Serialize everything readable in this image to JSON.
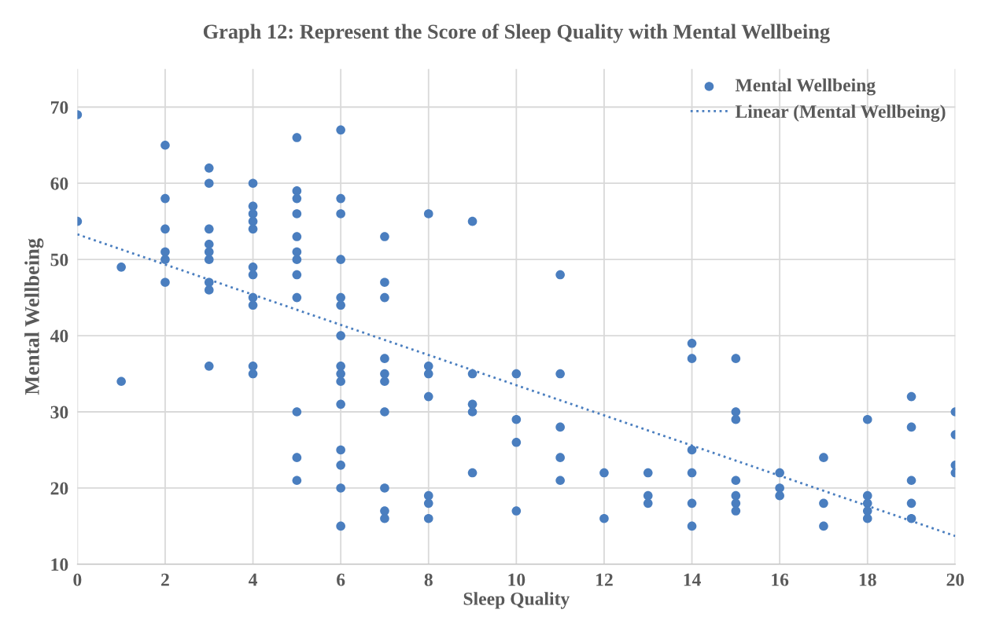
{
  "chart_data": {
    "type": "scatter",
    "title": "Graph 12: Represent the Score of Sleep Quality with Mental Wellbeing",
    "xlabel": "Sleep Quality",
    "ylabel": "Mental Wellbeing",
    "xlim": [
      0,
      20
    ],
    "xticks": [
      0,
      2,
      4,
      6,
      8,
      10,
      12,
      14,
      16,
      18,
      20
    ],
    "ylim": [
      10,
      75
    ],
    "yticks": [
      10,
      20,
      30,
      40,
      50,
      60,
      70
    ],
    "grid": true,
    "legend": "top right",
    "series": [
      {
        "name": "Mental Wellbeing",
        "marker": "circle",
        "color": "#4a7ebf",
        "x": [
          0,
          0,
          1,
          1,
          2,
          2,
          2,
          2,
          2,
          2,
          3,
          3,
          3,
          3,
          3,
          3,
          3,
          3,
          3,
          4,
          4,
          4,
          4,
          4,
          4,
          4,
          4,
          4,
          4,
          4,
          5,
          5,
          5,
          5,
          5,
          5,
          5,
          5,
          5,
          5,
          5,
          5,
          6,
          6,
          6,
          6,
          6,
          6,
          6,
          6,
          6,
          6,
          6,
          6,
          6,
          6,
          6,
          7,
          7,
          7,
          7,
          7,
          7,
          7,
          7,
          7,
          7,
          8,
          8,
          8,
          8,
          8,
          8,
          8,
          9,
          9,
          9,
          9,
          9,
          10,
          10,
          10,
          10,
          11,
          11,
          11,
          11,
          11,
          12,
          12,
          13,
          13,
          13,
          14,
          14,
          14,
          14,
          14,
          14,
          15,
          15,
          15,
          15,
          15,
          15,
          15,
          16,
          16,
          16,
          17,
          17,
          17,
          18,
          18,
          18,
          18,
          18,
          19,
          19,
          19,
          19,
          19,
          20,
          20,
          20,
          20
        ],
        "values": [
          69,
          55,
          49,
          34,
          65,
          58,
          54,
          51,
          50,
          47,
          62,
          60,
          54,
          52,
          51,
          50,
          47,
          46,
          36,
          60,
          57,
          56,
          55,
          54,
          49,
          48,
          45,
          44,
          36,
          35,
          66,
          59,
          58,
          56,
          53,
          51,
          50,
          48,
          45,
          30,
          24,
          21,
          67,
          58,
          56,
          50,
          45,
          44,
          40,
          36,
          35,
          34,
          31,
          25,
          23,
          20,
          15,
          53,
          47,
          45,
          37,
          35,
          34,
          30,
          20,
          17,
          16,
          56,
          36,
          35,
          32,
          19,
          18,
          16,
          55,
          35,
          31,
          30,
          22,
          35,
          29,
          26,
          17,
          48,
          35,
          28,
          24,
          21,
          22,
          16,
          22,
          19,
          18,
          39,
          37,
          25,
          22,
          18,
          15,
          37,
          30,
          29,
          21,
          19,
          18,
          17,
          22,
          20,
          19,
          24,
          18,
          15,
          29,
          19,
          18,
          17,
          16,
          32,
          28,
          21,
          18,
          16,
          30,
          27,
          23,
          22
        ]
      },
      {
        "name": "Linear (Mental Wellbeing)",
        "type": "line",
        "line_style": "dotted",
        "marker": "none",
        "color": "#4a7ebf",
        "x": [
          0,
          20
        ],
        "values": [
          53.3,
          13.7
        ]
      }
    ]
  }
}
